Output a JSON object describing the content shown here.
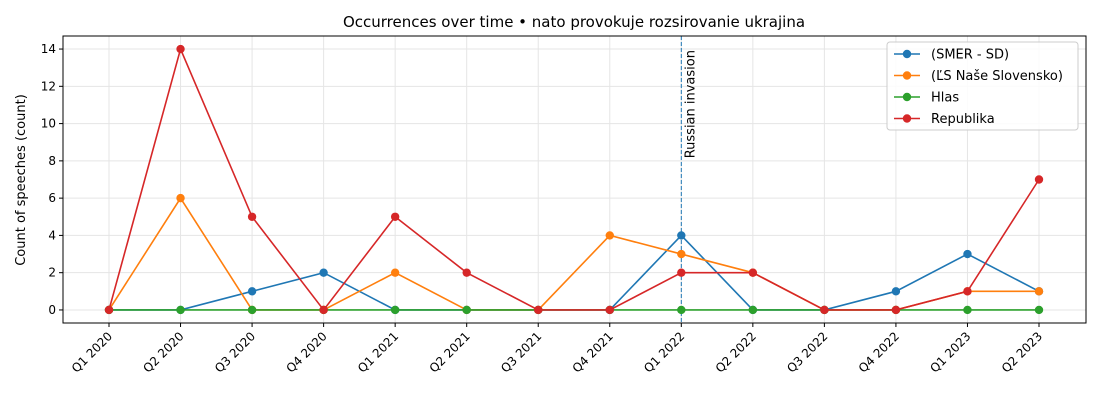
{
  "chart_data": {
    "type": "line",
    "title": "Occurrences over time • nato provokuje rozsirovanie ukrajina",
    "xlabel": "",
    "ylabel": "Count of speeches (count)",
    "categories": [
      "Q1 2020",
      "Q2 2020",
      "Q3 2020",
      "Q4 2020",
      "Q1 2021",
      "Q2 2021",
      "Q3 2021",
      "Q4 2021",
      "Q1 2022",
      "Q2 2022",
      "Q3 2022",
      "Q4 2022",
      "Q1 2023",
      "Q2 2023"
    ],
    "ylim": [
      -0.7,
      14.7
    ],
    "yticks": [
      0,
      2,
      4,
      6,
      8,
      10,
      12,
      14
    ],
    "grid": true,
    "legend_position": "top-right",
    "series": [
      {
        "name": "(SMER - SD)",
        "color": "#1f77b4",
        "values": [
          0,
          0,
          1,
          2,
          0,
          0,
          0,
          0,
          4,
          0,
          0,
          1,
          3,
          1
        ]
      },
      {
        "name": "(ĽS Naše Slovensko)",
        "color": "#ff7f0e",
        "values": [
          0,
          6,
          0,
          0,
          2,
          0,
          0,
          4,
          3,
          2,
          0,
          0,
          1,
          1
        ]
      },
      {
        "name": "Hlas",
        "color": "#2ca02c",
        "values": [
          0,
          0,
          0,
          0,
          0,
          0,
          0,
          0,
          0,
          0,
          0,
          0,
          0,
          0
        ]
      },
      {
        "name": "Republika",
        "color": "#d62728",
        "values": [
          0,
          14,
          5,
          0,
          5,
          2,
          0,
          0,
          2,
          2,
          0,
          0,
          1,
          7
        ]
      }
    ],
    "annotations": [
      {
        "text": "Russian invasion",
        "x": "Q1 2022",
        "style": "dashed-vertical-line",
        "color": "#1f77b4"
      }
    ]
  }
}
